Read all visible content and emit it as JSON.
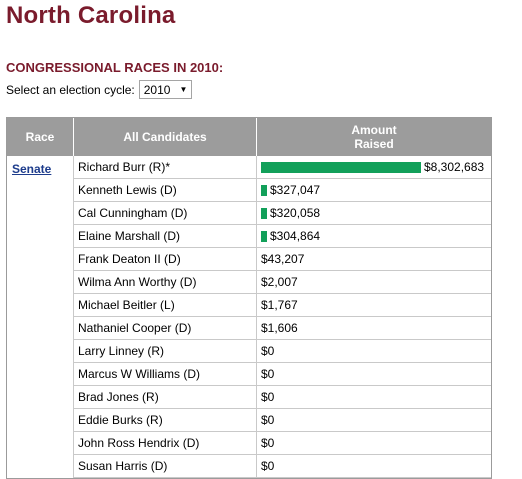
{
  "page": {
    "title": "North Carolina",
    "subtitle": "CONGRESSIONAL RACES IN 2010:"
  },
  "cycle": {
    "label": "Select an election cycle:",
    "selected": "2010"
  },
  "table": {
    "headers": {
      "race": "Race",
      "candidates": "All Candidates",
      "amount": "Amount\nRaised"
    },
    "race_link": "Senate",
    "max_amount": 8302683,
    "rows": [
      {
        "candidate": "Richard Burr (R)*",
        "amount": "$8,302,683",
        "value": 8302683
      },
      {
        "candidate": "Kenneth Lewis (D)",
        "amount": "$327,047",
        "value": 327047
      },
      {
        "candidate": "Cal Cunningham (D)",
        "amount": "$320,058",
        "value": 320058
      },
      {
        "candidate": "Elaine Marshall (D)",
        "amount": "$304,864",
        "value": 304864
      },
      {
        "candidate": "Frank Deaton II (D)",
        "amount": "$43,207",
        "value": 43207
      },
      {
        "candidate": "Wilma Ann Worthy (D)",
        "amount": "$2,007",
        "value": 2007
      },
      {
        "candidate": "Michael Beitler (L)",
        "amount": "$1,767",
        "value": 1767
      },
      {
        "candidate": "Nathaniel Cooper (D)",
        "amount": "$1,606",
        "value": 1606
      },
      {
        "candidate": "Larry Linney (R)",
        "amount": "$0",
        "value": 0
      },
      {
        "candidate": "Marcus W Williams (D)",
        "amount": "$0",
        "value": 0
      },
      {
        "candidate": "Brad Jones (R)",
        "amount": "$0",
        "value": 0
      },
      {
        "candidate": "Eddie Burks (R)",
        "amount": "$0",
        "value": 0
      },
      {
        "candidate": "John Ross Hendrix (D)",
        "amount": "$0",
        "value": 0
      },
      {
        "candidate": "Susan Harris (D)",
        "amount": "$0",
        "value": 0
      }
    ]
  },
  "colors": {
    "title": "#7a1b2c",
    "bar": "#12a05a",
    "header_bg": "#9c9c9c",
    "link": "#1d3c8c"
  }
}
